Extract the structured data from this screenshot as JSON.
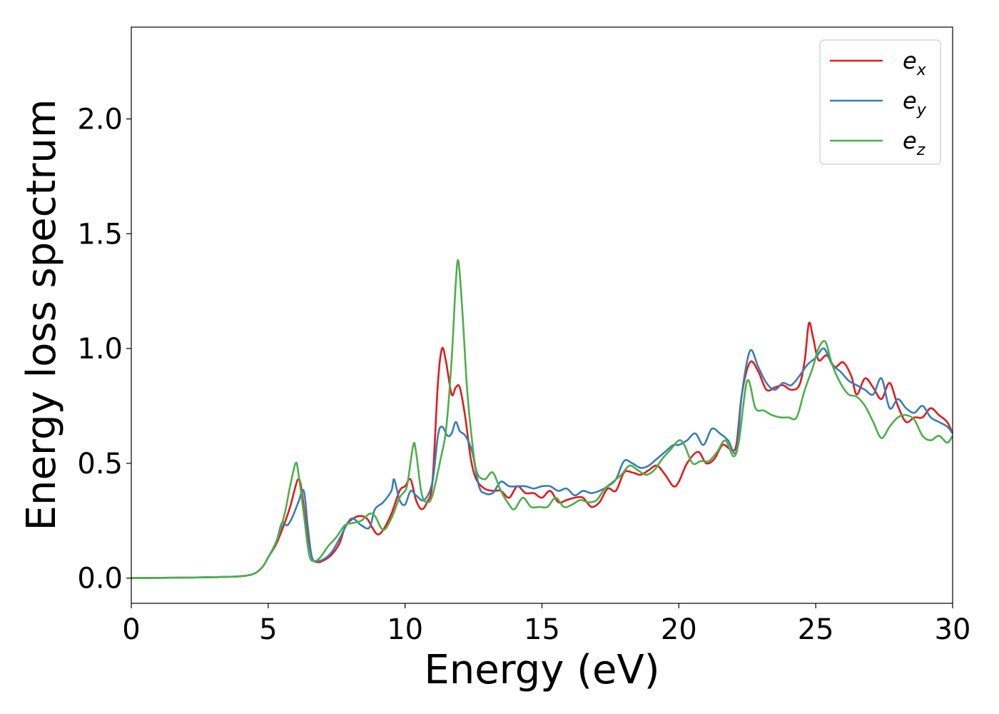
{
  "chart_data": {
    "type": "line",
    "title": "",
    "xlabel": "Energy (eV)",
    "ylabel": "Energy loss spectrum",
    "xlim": [
      0,
      30
    ],
    "ylim": [
      -0.11,
      2.4
    ],
    "xticks": [
      0,
      5,
      10,
      15,
      20,
      25,
      30
    ],
    "xtick_labels": [
      "0",
      "5",
      "10",
      "15",
      "20",
      "25",
      "30"
    ],
    "yticks": [
      0.0,
      0.5,
      1.0,
      1.5,
      2.0
    ],
    "ytick_labels": [
      "0.0",
      "0.5",
      "1.0",
      "1.5",
      "2.0"
    ],
    "grid": false,
    "legend_position": "top-right",
    "series": [
      {
        "name": "e",
        "subscript": "x",
        "color": "#e41a1c",
        "points": [
          [
            0,
            0
          ],
          [
            2,
            0.002
          ],
          [
            3,
            0.004
          ],
          [
            4,
            0.008
          ],
          [
            4.5,
            0.02
          ],
          [
            4.8,
            0.05
          ],
          [
            5.0,
            0.09
          ],
          [
            5.3,
            0.15
          ],
          [
            5.6,
            0.24
          ],
          [
            5.8,
            0.31
          ],
          [
            6.0,
            0.4
          ],
          [
            6.1,
            0.43
          ],
          [
            6.2,
            0.4
          ],
          [
            6.4,
            0.22
          ],
          [
            6.6,
            0.09
          ],
          [
            6.8,
            0.07
          ],
          [
            7.0,
            0.075
          ],
          [
            7.3,
            0.1
          ],
          [
            7.6,
            0.15
          ],
          [
            7.8,
            0.22
          ],
          [
            8.0,
            0.25
          ],
          [
            8.3,
            0.27
          ],
          [
            8.6,
            0.26
          ],
          [
            8.8,
            0.22
          ],
          [
            9.0,
            0.19
          ],
          [
            9.2,
            0.21
          ],
          [
            9.5,
            0.28
          ],
          [
            9.8,
            0.38
          ],
          [
            10.0,
            0.4
          ],
          [
            10.2,
            0.43
          ],
          [
            10.4,
            0.34
          ],
          [
            10.6,
            0.3
          ],
          [
            10.8,
            0.33
          ],
          [
            11.0,
            0.42
          ],
          [
            11.2,
            0.85
          ],
          [
            11.35,
            1.0
          ],
          [
            11.5,
            0.94
          ],
          [
            11.7,
            0.8
          ],
          [
            11.85,
            0.83
          ],
          [
            12.0,
            0.83
          ],
          [
            12.2,
            0.7
          ],
          [
            12.4,
            0.52
          ],
          [
            12.6,
            0.43
          ],
          [
            12.9,
            0.39
          ],
          [
            13.2,
            0.38
          ],
          [
            13.5,
            0.38
          ],
          [
            13.8,
            0.35
          ],
          [
            14.1,
            0.4
          ],
          [
            14.4,
            0.37
          ],
          [
            14.7,
            0.37
          ],
          [
            15.0,
            0.35
          ],
          [
            15.3,
            0.38
          ],
          [
            15.6,
            0.33
          ],
          [
            15.9,
            0.34
          ],
          [
            16.2,
            0.35
          ],
          [
            16.5,
            0.35
          ],
          [
            16.8,
            0.31
          ],
          [
            17.1,
            0.33
          ],
          [
            17.4,
            0.39
          ],
          [
            17.7,
            0.38
          ],
          [
            18.0,
            0.46
          ],
          [
            18.3,
            0.46
          ],
          [
            18.6,
            0.45
          ],
          [
            18.9,
            0.47
          ],
          [
            19.2,
            0.49
          ],
          [
            19.5,
            0.45
          ],
          [
            19.8,
            0.4
          ],
          [
            20.0,
            0.42
          ],
          [
            20.3,
            0.5
          ],
          [
            20.7,
            0.55
          ],
          [
            21.0,
            0.5
          ],
          [
            21.3,
            0.52
          ],
          [
            21.6,
            0.58
          ],
          [
            21.9,
            0.56
          ],
          [
            22.1,
            0.58
          ],
          [
            22.3,
            0.8
          ],
          [
            22.6,
            0.94
          ],
          [
            22.9,
            0.9
          ],
          [
            23.2,
            0.82
          ],
          [
            23.5,
            0.83
          ],
          [
            23.8,
            0.84
          ],
          [
            24.1,
            0.82
          ],
          [
            24.4,
            0.84
          ],
          [
            24.6,
            0.95
          ],
          [
            24.75,
            1.11
          ],
          [
            24.9,
            1.05
          ],
          [
            25.1,
            0.95
          ],
          [
            25.4,
            0.97
          ],
          [
            25.7,
            0.92
          ],
          [
            26.0,
            0.94
          ],
          [
            26.3,
            0.88
          ],
          [
            26.5,
            0.8
          ],
          [
            26.8,
            0.87
          ],
          [
            27.1,
            0.83
          ],
          [
            27.4,
            0.78
          ],
          [
            27.7,
            0.85
          ],
          [
            28.0,
            0.75
          ],
          [
            28.3,
            0.68
          ],
          [
            28.6,
            0.7
          ],
          [
            28.9,
            0.7
          ],
          [
            29.2,
            0.74
          ],
          [
            29.5,
            0.71
          ],
          [
            29.8,
            0.68
          ],
          [
            30.0,
            0.63
          ]
        ]
      },
      {
        "name": "e",
        "subscript": "y",
        "color": "#377eb8",
        "points": [
          [
            0,
            0
          ],
          [
            2,
            0.002
          ],
          [
            3,
            0.004
          ],
          [
            4,
            0.008
          ],
          [
            4.5,
            0.02
          ],
          [
            4.8,
            0.05
          ],
          [
            5.0,
            0.09
          ],
          [
            5.3,
            0.16
          ],
          [
            5.5,
            0.24
          ],
          [
            5.7,
            0.23
          ],
          [
            5.9,
            0.27
          ],
          [
            6.1,
            0.33
          ],
          [
            6.3,
            0.38
          ],
          [
            6.45,
            0.22
          ],
          [
            6.6,
            0.09
          ],
          [
            6.8,
            0.075
          ],
          [
            7.0,
            0.08
          ],
          [
            7.3,
            0.11
          ],
          [
            7.6,
            0.17
          ],
          [
            7.9,
            0.24
          ],
          [
            8.1,
            0.26
          ],
          [
            8.4,
            0.23
          ],
          [
            8.7,
            0.22
          ],
          [
            8.9,
            0.3
          ],
          [
            9.2,
            0.33
          ],
          [
            9.5,
            0.38
          ],
          [
            9.6,
            0.43
          ],
          [
            9.8,
            0.34
          ],
          [
            10.0,
            0.32
          ],
          [
            10.2,
            0.38
          ],
          [
            10.4,
            0.36
          ],
          [
            10.7,
            0.34
          ],
          [
            11.0,
            0.42
          ],
          [
            11.2,
            0.62
          ],
          [
            11.35,
            0.66
          ],
          [
            11.55,
            0.62
          ],
          [
            11.7,
            0.63
          ],
          [
            11.85,
            0.68
          ],
          [
            12.0,
            0.64
          ],
          [
            12.2,
            0.62
          ],
          [
            12.45,
            0.55
          ],
          [
            12.7,
            0.4
          ],
          [
            12.9,
            0.37
          ],
          [
            13.2,
            0.37
          ],
          [
            13.5,
            0.42
          ],
          [
            13.8,
            0.4
          ],
          [
            14.1,
            0.4
          ],
          [
            14.4,
            0.4
          ],
          [
            14.7,
            0.39
          ],
          [
            15.0,
            0.4
          ],
          [
            15.3,
            0.4
          ],
          [
            15.6,
            0.38
          ],
          [
            15.9,
            0.39
          ],
          [
            16.2,
            0.36
          ],
          [
            16.5,
            0.38
          ],
          [
            16.8,
            0.37
          ],
          [
            17.1,
            0.38
          ],
          [
            17.4,
            0.4
          ],
          [
            17.7,
            0.43
          ],
          [
            18.0,
            0.51
          ],
          [
            18.3,
            0.5
          ],
          [
            18.6,
            0.48
          ],
          [
            18.9,
            0.49
          ],
          [
            19.2,
            0.52
          ],
          [
            19.5,
            0.55
          ],
          [
            19.8,
            0.58
          ],
          [
            20.0,
            0.58
          ],
          [
            20.3,
            0.6
          ],
          [
            20.6,
            0.63
          ],
          [
            20.9,
            0.58
          ],
          [
            21.2,
            0.65
          ],
          [
            21.5,
            0.63
          ],
          [
            21.8,
            0.6
          ],
          [
            22.1,
            0.55
          ],
          [
            22.3,
            0.8
          ],
          [
            22.6,
            0.99
          ],
          [
            22.9,
            0.92
          ],
          [
            23.2,
            0.85
          ],
          [
            23.5,
            0.82
          ],
          [
            23.8,
            0.85
          ],
          [
            24.1,
            0.84
          ],
          [
            24.4,
            0.88
          ],
          [
            24.7,
            0.93
          ],
          [
            25.0,
            0.96
          ],
          [
            25.3,
            1.0
          ],
          [
            25.6,
            0.93
          ],
          [
            25.9,
            0.9
          ],
          [
            26.2,
            0.86
          ],
          [
            26.5,
            0.84
          ],
          [
            26.8,
            0.82
          ],
          [
            27.1,
            0.8
          ],
          [
            27.4,
            0.87
          ],
          [
            27.7,
            0.74
          ],
          [
            28.0,
            0.78
          ],
          [
            28.3,
            0.74
          ],
          [
            28.6,
            0.72
          ],
          [
            28.9,
            0.75
          ],
          [
            29.2,
            0.7
          ],
          [
            29.5,
            0.68
          ],
          [
            29.8,
            0.66
          ],
          [
            30.0,
            0.63
          ]
        ]
      },
      {
        "name": "e",
        "subscript": "z",
        "color": "#4daf4a",
        "points": [
          [
            0,
            0
          ],
          [
            2,
            0.002
          ],
          [
            3,
            0.004
          ],
          [
            4,
            0.008
          ],
          [
            4.5,
            0.02
          ],
          [
            4.8,
            0.05
          ],
          [
            5.0,
            0.09
          ],
          [
            5.3,
            0.16
          ],
          [
            5.6,
            0.28
          ],
          [
            5.8,
            0.4
          ],
          [
            6.0,
            0.5
          ],
          [
            6.1,
            0.46
          ],
          [
            6.3,
            0.28
          ],
          [
            6.5,
            0.1
          ],
          [
            6.7,
            0.075
          ],
          [
            6.9,
            0.09
          ],
          [
            7.2,
            0.14
          ],
          [
            7.5,
            0.18
          ],
          [
            7.8,
            0.23
          ],
          [
            8.1,
            0.24
          ],
          [
            8.4,
            0.25
          ],
          [
            8.7,
            0.28
          ],
          [
            8.9,
            0.27
          ],
          [
            9.2,
            0.21
          ],
          [
            9.5,
            0.26
          ],
          [
            9.8,
            0.35
          ],
          [
            10.0,
            0.38
          ],
          [
            10.1,
            0.42
          ],
          [
            10.3,
            0.58
          ],
          [
            10.4,
            0.55
          ],
          [
            10.6,
            0.37
          ],
          [
            10.8,
            0.33
          ],
          [
            11.0,
            0.36
          ],
          [
            11.3,
            0.52
          ],
          [
            11.5,
            0.65
          ],
          [
            11.7,
            0.95
          ],
          [
            11.85,
            1.28
          ],
          [
            11.95,
            1.38
          ],
          [
            12.1,
            1.15
          ],
          [
            12.25,
            0.85
          ],
          [
            12.4,
            0.65
          ],
          [
            12.6,
            0.47
          ],
          [
            12.9,
            0.43
          ],
          [
            13.2,
            0.46
          ],
          [
            13.5,
            0.38
          ],
          [
            13.8,
            0.32
          ],
          [
            14.0,
            0.3
          ],
          [
            14.3,
            0.35
          ],
          [
            14.6,
            0.31
          ],
          [
            14.9,
            0.31
          ],
          [
            15.2,
            0.31
          ],
          [
            15.5,
            0.35
          ],
          [
            15.8,
            0.31
          ],
          [
            16.1,
            0.32
          ],
          [
            16.4,
            0.34
          ],
          [
            16.7,
            0.33
          ],
          [
            17.0,
            0.34
          ],
          [
            17.3,
            0.39
          ],
          [
            17.6,
            0.42
          ],
          [
            17.9,
            0.45
          ],
          [
            18.2,
            0.49
          ],
          [
            18.5,
            0.47
          ],
          [
            18.8,
            0.45
          ],
          [
            19.1,
            0.47
          ],
          [
            19.4,
            0.52
          ],
          [
            19.7,
            0.56
          ],
          [
            20.0,
            0.6
          ],
          [
            20.2,
            0.58
          ],
          [
            20.5,
            0.5
          ],
          [
            20.8,
            0.51
          ],
          [
            21.1,
            0.51
          ],
          [
            21.4,
            0.55
          ],
          [
            21.7,
            0.6
          ],
          [
            22.0,
            0.53
          ],
          [
            22.2,
            0.6
          ],
          [
            22.5,
            0.86
          ],
          [
            22.8,
            0.74
          ],
          [
            23.1,
            0.73
          ],
          [
            23.4,
            0.71
          ],
          [
            23.7,
            0.7
          ],
          [
            24.0,
            0.7
          ],
          [
            24.3,
            0.7
          ],
          [
            24.6,
            0.82
          ],
          [
            24.9,
            0.92
          ],
          [
            25.1,
            1.0
          ],
          [
            25.35,
            1.03
          ],
          [
            25.6,
            0.93
          ],
          [
            25.9,
            0.85
          ],
          [
            26.2,
            0.8
          ],
          [
            26.5,
            0.79
          ],
          [
            26.8,
            0.75
          ],
          [
            27.1,
            0.68
          ],
          [
            27.4,
            0.61
          ],
          [
            27.7,
            0.66
          ],
          [
            28.0,
            0.7
          ],
          [
            28.3,
            0.71
          ],
          [
            28.6,
            0.69
          ],
          [
            28.9,
            0.62
          ],
          [
            29.2,
            0.6
          ],
          [
            29.5,
            0.62
          ],
          [
            29.8,
            0.59
          ],
          [
            30.0,
            0.62
          ]
        ]
      }
    ]
  }
}
